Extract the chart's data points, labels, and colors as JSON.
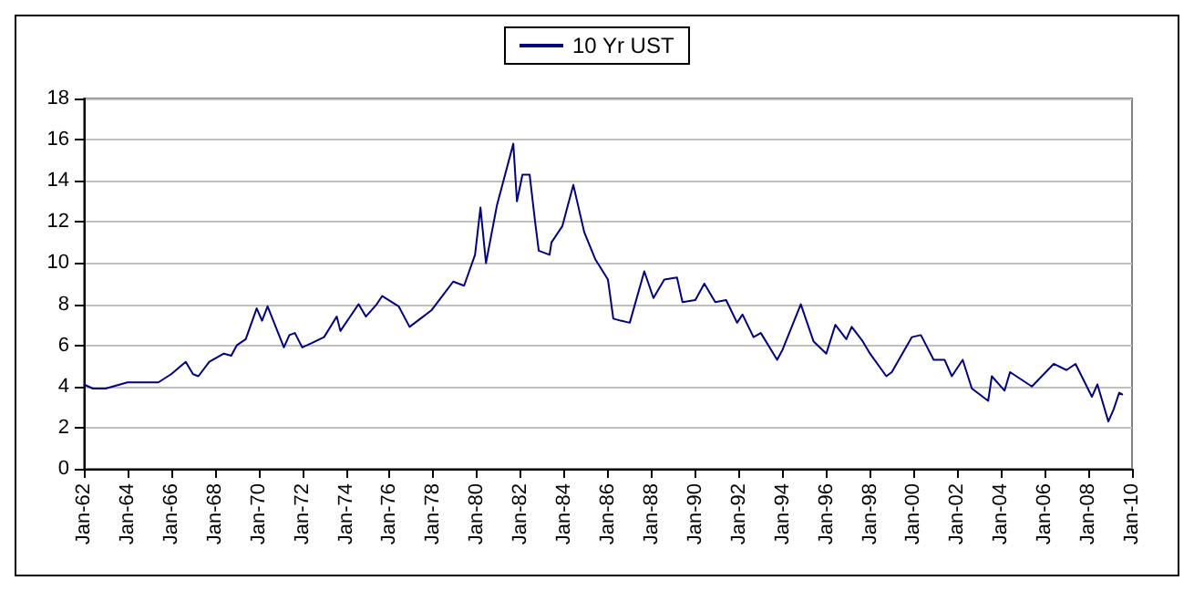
{
  "chart_data": {
    "type": "line",
    "x": [
      "1962-01",
      "1962-06",
      "1963-01",
      "1964-01",
      "1965-01",
      "1965-06",
      "1966-01",
      "1966-09",
      "1967-01",
      "1967-04",
      "1967-10",
      "1968-06",
      "1968-10",
      "1969-01",
      "1969-06",
      "1969-12",
      "1970-03",
      "1970-06",
      "1971-03",
      "1971-06",
      "1971-09",
      "1972-01",
      "1972-06",
      "1973-01",
      "1973-08",
      "1973-10",
      "1974-08",
      "1974-12",
      "1975-06",
      "1975-09",
      "1976-06",
      "1976-12",
      "1977-06",
      "1977-12",
      "1978-06",
      "1978-12",
      "1979-06",
      "1979-12",
      "1980-03",
      "1980-06",
      "1980-12",
      "1981-09",
      "1981-11",
      "1982-02",
      "1982-06",
      "1982-09",
      "1982-11",
      "1983-05",
      "1983-06",
      "1983-12",
      "1984-06",
      "1984-12",
      "1985-06",
      "1986-01",
      "1986-04",
      "1986-08",
      "1987-01",
      "1987-09",
      "1988-02",
      "1988-08",
      "1989-03",
      "1989-06",
      "1990-01",
      "1990-06",
      "1990-12",
      "1991-06",
      "1991-12",
      "1992-03",
      "1992-09",
      "1993-01",
      "1993-10",
      "1994-01",
      "1994-11",
      "1995-06",
      "1996-01",
      "1996-06",
      "1996-12",
      "1997-03",
      "1997-09",
      "1998-01",
      "1998-10",
      "1999-01",
      "1999-12",
      "2000-05",
      "2000-12",
      "2001-06",
      "2001-10",
      "2002-04",
      "2002-09",
      "2003-06",
      "2003-08",
      "2004-03",
      "2004-06",
      "2005-06",
      "2006-06",
      "2007-01",
      "2007-06",
      "2008-03",
      "2008-06",
      "2008-12",
      "2009-03",
      "2009-06",
      "2009-08"
    ],
    "series": [
      {
        "name": "10 Yr UST",
        "color": "#000080",
        "values": [
          4.1,
          3.9,
          3.9,
          4.2,
          4.2,
          4.2,
          4.6,
          5.2,
          4.6,
          4.5,
          5.2,
          5.6,
          5.5,
          6.0,
          6.3,
          7.8,
          7.2,
          7.9,
          5.9,
          6.5,
          6.6,
          5.9,
          6.1,
          6.4,
          7.4,
          6.7,
          8.0,
          7.4,
          8.0,
          8.4,
          7.9,
          6.9,
          7.3,
          7.7,
          8.4,
          9.1,
          8.9,
          10.4,
          12.7,
          10.0,
          12.8,
          15.8,
          13.0,
          14.3,
          14.3,
          12.0,
          10.6,
          10.4,
          11.0,
          11.8,
          13.8,
          11.5,
          10.2,
          9.2,
          7.3,
          7.2,
          7.1,
          9.6,
          8.3,
          9.2,
          9.3,
          8.1,
          8.2,
          9.0,
          8.1,
          8.2,
          7.1,
          7.5,
          6.4,
          6.6,
          5.3,
          5.8,
          8.0,
          6.2,
          5.6,
          7.0,
          6.3,
          6.9,
          6.2,
          5.6,
          4.5,
          4.7,
          6.4,
          6.5,
          5.3,
          5.3,
          4.5,
          5.3,
          3.9,
          3.3,
          4.5,
          3.8,
          4.7,
          4.0,
          5.1,
          4.8,
          5.1,
          3.5,
          4.1,
          2.3,
          2.9,
          3.7,
          3.6
        ]
      }
    ],
    "xlim": [
      "1962-01",
      "2010-01"
    ],
    "xticks": [
      {
        "value": "1962-01",
        "label": "Jan-62"
      },
      {
        "value": "1964-01",
        "label": "Jan-64"
      },
      {
        "value": "1966-01",
        "label": "Jan-66"
      },
      {
        "value": "1968-01",
        "label": "Jan-68"
      },
      {
        "value": "1970-01",
        "label": "Jan-70"
      },
      {
        "value": "1972-01",
        "label": "Jan-72"
      },
      {
        "value": "1974-01",
        "label": "Jan-74"
      },
      {
        "value": "1976-01",
        "label": "Jan-76"
      },
      {
        "value": "1978-01",
        "label": "Jan-78"
      },
      {
        "value": "1980-01",
        "label": "Jan-80"
      },
      {
        "value": "1982-01",
        "label": "Jan-82"
      },
      {
        "value": "1984-01",
        "label": "Jan-84"
      },
      {
        "value": "1986-01",
        "label": "Jan-86"
      },
      {
        "value": "1988-01",
        "label": "Jan-88"
      },
      {
        "value": "1990-01",
        "label": "Jan-90"
      },
      {
        "value": "1992-01",
        "label": "Jan-92"
      },
      {
        "value": "1994-01",
        "label": "Jan-94"
      },
      {
        "value": "1996-01",
        "label": "Jan-96"
      },
      {
        "value": "1998-01",
        "label": "Jan-98"
      },
      {
        "value": "2000-01",
        "label": "Jan-00"
      },
      {
        "value": "2002-01",
        "label": "Jan-02"
      },
      {
        "value": "2004-01",
        "label": "Jan-04"
      },
      {
        "value": "2006-01",
        "label": "Jan-06"
      },
      {
        "value": "2008-01",
        "label": "Jan-08"
      },
      {
        "value": "2010-01",
        "label": "Jan-10"
      }
    ],
    "ylim": [
      0,
      18
    ],
    "yticks": [
      0,
      2,
      4,
      6,
      8,
      10,
      12,
      14,
      16,
      18
    ],
    "grid": "y",
    "legend": "top",
    "marker": "none",
    "line_style": "solid"
  }
}
